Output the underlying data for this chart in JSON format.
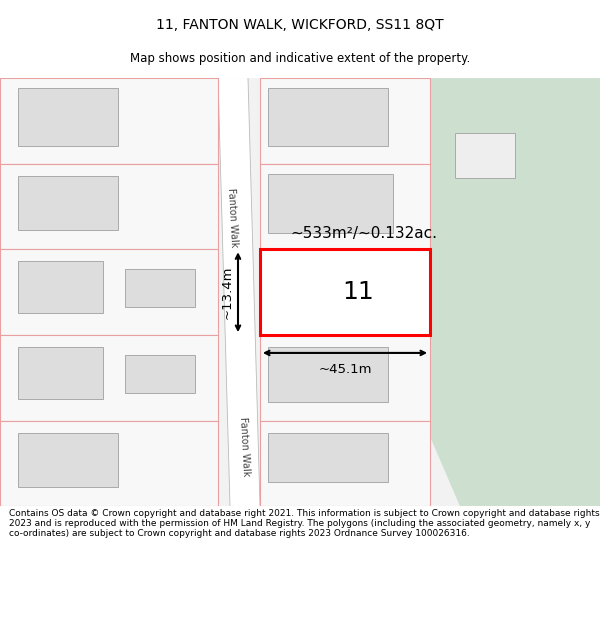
{
  "title": "11, FANTON WALK, WICKFORD, SS11 8QT",
  "subtitle": "Map shows position and indicative extent of the property.",
  "footer": "Contains OS data © Crown copyright and database right 2021. This information is subject to Crown copyright and database rights 2023 and is reproduced with the permission of HM Land Registry. The polygons (including the associated geometry, namely x, y co-ordinates) are subject to Crown copyright and database rights 2023 Ordnance Survey 100026316.",
  "bg_color": "#ffffff",
  "map_bg": "#f2f2f2",
  "green_color": "#cde0d0",
  "road_color": "#ffffff",
  "lot_fill": "#f8f8f8",
  "lot_outline": "#e8a0a0",
  "bld_fill": "#dddddd",
  "bld_outline": "#aaaaaa",
  "plot_outline": "#ff0000",
  "plot_fill": "#ffffff",
  "area_label": "~533m²/~0.132ac.",
  "width_label": "~45.1m",
  "height_label": "~13.4m",
  "plot_number": "11",
  "street_label": "Fanton Walk",
  "title_fontsize": 10,
  "subtitle_fontsize": 8.5,
  "footer_fontsize": 6.5
}
